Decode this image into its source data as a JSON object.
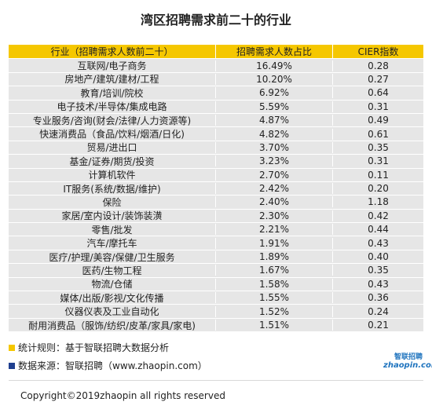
{
  "title": "湾区招聘需求前二十的行业",
  "table": {
    "headers": [
      "行业（招聘需求人数前二十）",
      "招聘需求人数占比",
      "CIER指数"
    ],
    "rows": [
      [
        "互联网/电子商务",
        "16.49%",
        "0.28"
      ],
      [
        "房地产/建筑/建材/工程",
        "10.20%",
        "0.27"
      ],
      [
        "教育/培训/院校",
        "6.92%",
        "0.64"
      ],
      [
        "电子技术/半导体/集成电路",
        "5.59%",
        "0.31"
      ],
      [
        "专业服务/咨询(财会/法律/人力资源等)",
        "4.87%",
        "0.49"
      ],
      [
        "快速消费品（食品/饮料/烟酒/日化)",
        "4.82%",
        "0.61"
      ],
      [
        "贸易/进出口",
        "3.70%",
        "0.35"
      ],
      [
        "基金/证券/期货/投资",
        "3.23%",
        "0.31"
      ],
      [
        "计算机软件",
        "2.70%",
        "0.11"
      ],
      [
        "IT服务(系统/数据/维护)",
        "2.42%",
        "0.20"
      ],
      [
        "保险",
        "2.40%",
        "1.18"
      ],
      [
        "家居/室内设计/装饰装潢",
        "2.30%",
        "0.42"
      ],
      [
        "零售/批发",
        "2.21%",
        "0.44"
      ],
      [
        "汽车/摩托车",
        "1.91%",
        "0.43"
      ],
      [
        "医疗/护理/美容/保健/卫生服务",
        "1.89%",
        "0.40"
      ],
      [
        "医药/生物工程",
        "1.67%",
        "0.35"
      ],
      [
        "物流/仓储",
        "1.58%",
        "0.43"
      ],
      [
        "媒体/出版/影视/文化传播",
        "1.55%",
        "0.36"
      ],
      [
        "仪器仪表及工业自动化",
        "1.52%",
        "0.24"
      ],
      [
        "耐用消费品（服饰/纺织/皮革/家具/家电)",
        "1.51%",
        "0.21"
      ]
    ]
  },
  "notes": {
    "rule": "统计规则：基于智联招聘大数据分析",
    "source": "数据来源：智联招聘（www.zhaopin.com）"
  },
  "logo": {
    "cn": "智联招聘",
    "en": "zhaopin.com"
  },
  "colors": {
    "header": "#f5c700",
    "row": "#e6e6e6",
    "note1_marker": "#f5c700",
    "note2_marker": "#1f3f8f"
  },
  "copyright": "Copyright©2019zhaopin all rights reserved"
}
